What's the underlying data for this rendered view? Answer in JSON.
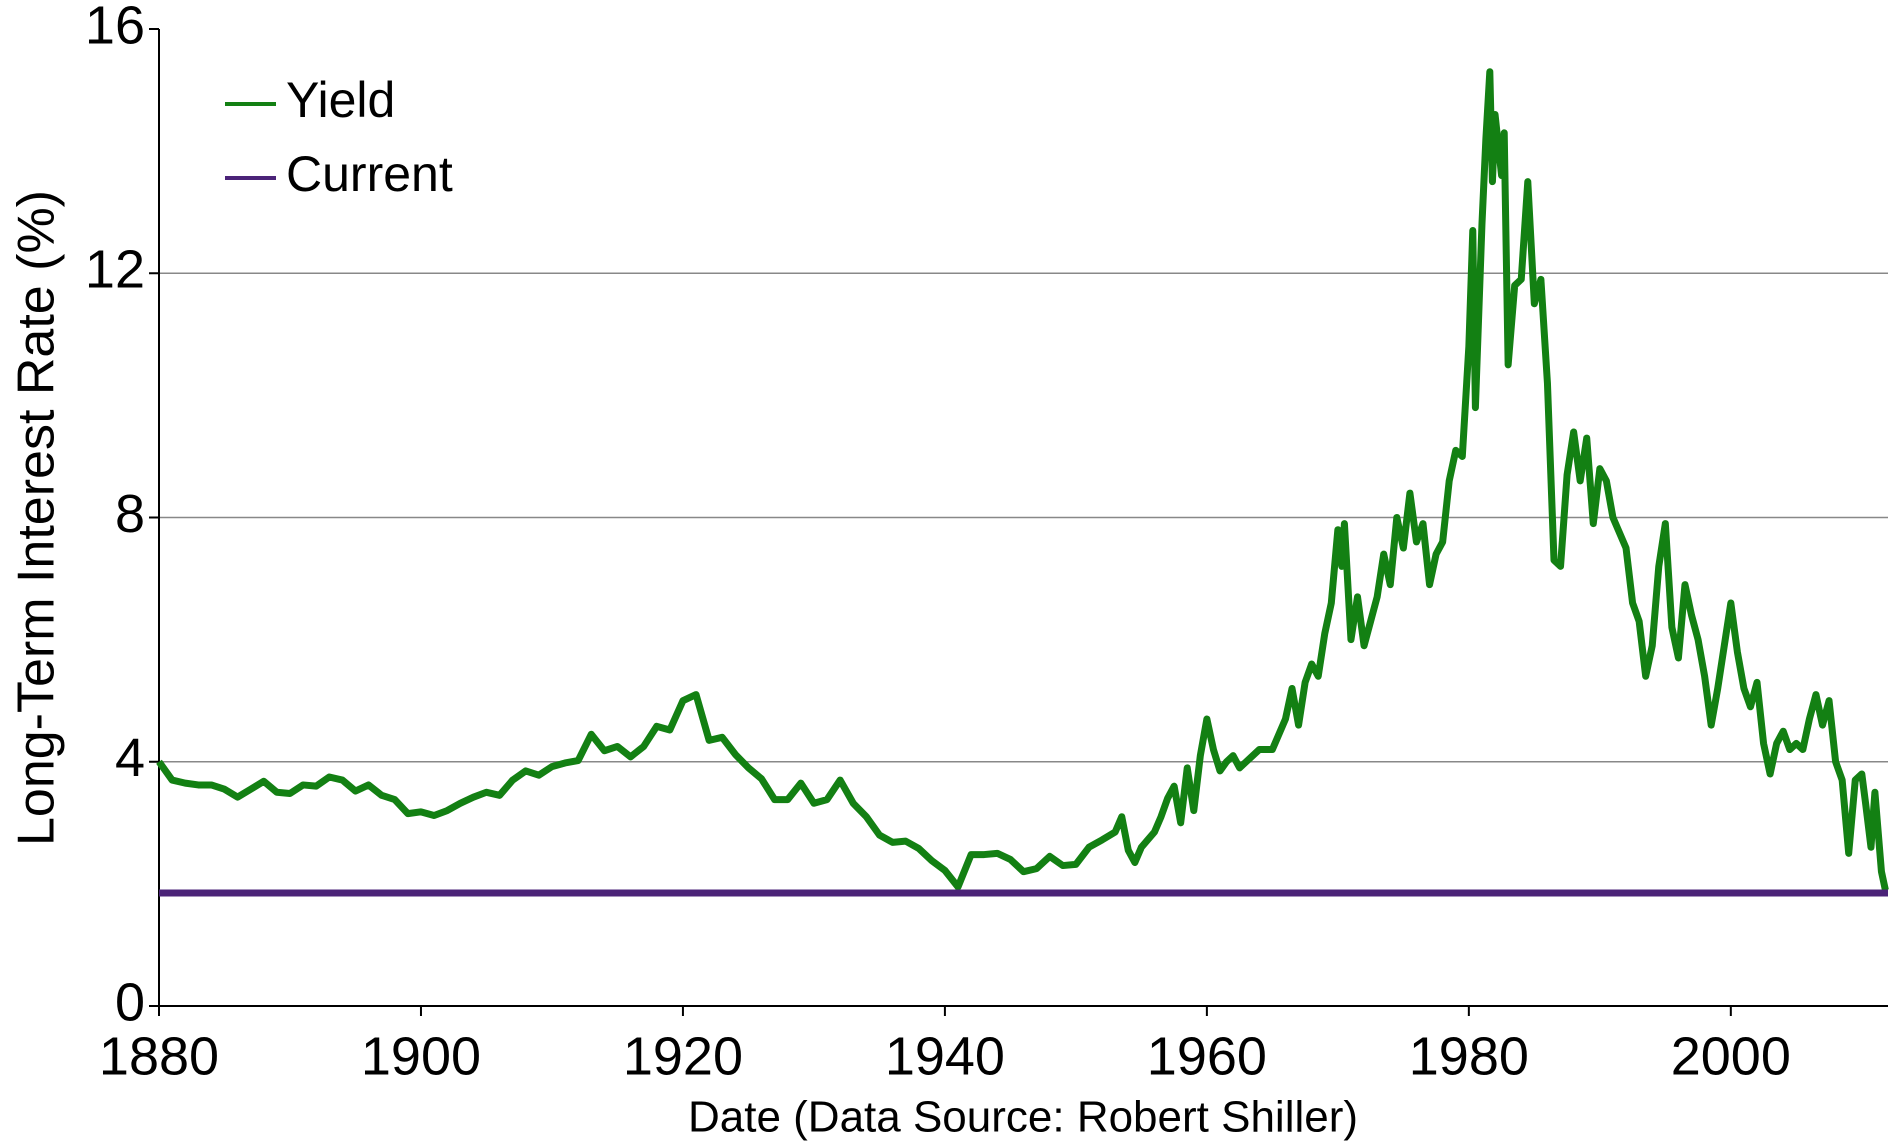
{
  "chart_data": {
    "type": "line",
    "xlabel": "Date (Data Source: Robert Shiller)",
    "ylabel": "Long-Term Interest Rate (%)",
    "xlim": [
      1880,
      2012
    ],
    "xticks": [
      1880,
      1900,
      1920,
      1940,
      1960,
      1980,
      2000
    ],
    "ylim": [
      0,
      16
    ],
    "yticks": [
      0,
      4,
      8,
      12,
      16
    ],
    "grid": true,
    "legend": "upper left",
    "series": [
      {
        "name": "Yield",
        "color": "#138013",
        "x": [
          1880,
          1881,
          1882,
          1883,
          1884,
          1885,
          1886,
          1887,
          1888,
          1889,
          1890,
          1891,
          1892,
          1893,
          1894,
          1895,
          1896,
          1897,
          1898,
          1899,
          1900,
          1901,
          1902,
          1903,
          1904,
          1905,
          1906,
          1907,
          1908,
          1909,
          1910,
          1911,
          1912,
          1913,
          1914,
          1915,
          1916,
          1917,
          1918,
          1919,
          1920,
          1921,
          1922,
          1923,
          1924,
          1925,
          1926,
          1927,
          1928,
          1929,
          1930,
          1931,
          1932,
          1933,
          1934,
          1935,
          1936,
          1937,
          1938,
          1939,
          1940,
          1941,
          1942,
          1943,
          1944,
          1945,
          1946,
          1947,
          1948,
          1949,
          1950,
          1951,
          1952,
          1953,
          1953.5,
          1954,
          1954.5,
          1955,
          1956,
          1956.5,
          1957,
          1957.5,
          1958,
          1958.5,
          1959,
          1959.5,
          1960,
          1960.5,
          1961,
          1961.5,
          1962,
          1962.5,
          1963,
          1964,
          1965,
          1966,
          1966.5,
          1967,
          1967.5,
          1968,
          1968.5,
          1969,
          1969.5,
          1970,
          1970.3,
          1970.5,
          1971,
          1971.5,
          1972,
          1972.5,
          1973,
          1973.5,
          1974,
          1974.5,
          1975,
          1975.5,
          1976,
          1976.5,
          1977,
          1977.5,
          1978,
          1978.5,
          1979,
          1979.5,
          1980,
          1980.3,
          1980.5,
          1981,
          1981.3,
          1981.6,
          1981.8,
          1982,
          1982.5,
          1982.7,
          1983,
          1983.5,
          1984,
          1984.5,
          1985,
          1985.5,
          1986,
          1986.5,
          1987,
          1987.5,
          1988,
          1988.5,
          1989,
          1989.5,
          1990,
          1990.5,
          1991,
          1992,
          1992.5,
          1993,
          1993.5,
          1994,
          1994.5,
          1995,
          1995.5,
          1996,
          1996.5,
          1997,
          1997.5,
          1998,
          1998.5,
          1999,
          1999.5,
          2000,
          2000.5,
          2001,
          2001.5,
          2002,
          2002.5,
          2003,
          2003.5,
          2004,
          2004.5,
          2005,
          2005.5,
          2006,
          2006.5,
          2007,
          2007.5,
          2008,
          2008.5,
          2009,
          2009.5,
          2010,
          2010.3,
          2010.7,
          2011,
          2011.5,
          2011.8
        ],
        "values": [
          4.0,
          3.7,
          3.65,
          3.62,
          3.62,
          3.55,
          3.42,
          3.55,
          3.68,
          3.5,
          3.48,
          3.62,
          3.6,
          3.75,
          3.7,
          3.52,
          3.62,
          3.45,
          3.38,
          3.15,
          3.18,
          3.12,
          3.2,
          3.32,
          3.42,
          3.5,
          3.45,
          3.7,
          3.85,
          3.78,
          3.92,
          3.98,
          4.02,
          4.45,
          4.18,
          4.25,
          4.08,
          4.25,
          4.58,
          4.52,
          5.0,
          5.1,
          4.35,
          4.4,
          4.12,
          3.9,
          3.72,
          3.38,
          3.38,
          3.65,
          3.32,
          3.38,
          3.7,
          3.32,
          3.1,
          2.8,
          2.68,
          2.7,
          2.58,
          2.38,
          2.22,
          1.95,
          2.48,
          2.48,
          2.5,
          2.4,
          2.2,
          2.25,
          2.45,
          2.3,
          2.32,
          2.6,
          2.72,
          2.85,
          3.1,
          2.55,
          2.35,
          2.6,
          2.85,
          3.1,
          3.4,
          3.6,
          3.0,
          3.9,
          3.2,
          4.1,
          4.7,
          4.2,
          3.85,
          4.0,
          4.1,
          3.9,
          4.0,
          4.2,
          4.2,
          4.7,
          5.2,
          4.6,
          5.3,
          5.6,
          5.4,
          6.1,
          6.6,
          7.8,
          7.2,
          7.9,
          6.0,
          6.7,
          5.9,
          6.3,
          6.7,
          7.4,
          6.9,
          8.0,
          7.5,
          8.4,
          7.6,
          7.9,
          6.9,
          7.4,
          7.6,
          8.6,
          9.1,
          9.0,
          10.8,
          12.7,
          9.8,
          12.8,
          14.2,
          15.3,
          13.5,
          14.6,
          13.6,
          14.3,
          10.5,
          11.8,
          11.9,
          13.5,
          11.5,
          11.9,
          10.2,
          7.3,
          7.2,
          8.7,
          9.4,
          8.6,
          9.3,
          7.9,
          8.8,
          8.6,
          8.0,
          7.5,
          6.6,
          6.3,
          5.4,
          5.9,
          7.2,
          7.9,
          6.2,
          5.7,
          6.9,
          6.4,
          6.0,
          5.4,
          4.6,
          5.2,
          5.9,
          6.6,
          5.8,
          5.2,
          4.9,
          5.3,
          4.3,
          3.8,
          4.3,
          4.5,
          4.2,
          4.3,
          4.2,
          4.7,
          5.1,
          4.6,
          5.0,
          4.0,
          3.7,
          2.5,
          3.7,
          3.8,
          3.3,
          2.6,
          3.5,
          2.2,
          1.9
        ]
      },
      {
        "name": "Current",
        "color": "#4b2378",
        "x": [
          1880,
          2012
        ],
        "values": [
          1.85,
          1.85
        ]
      }
    ]
  }
}
